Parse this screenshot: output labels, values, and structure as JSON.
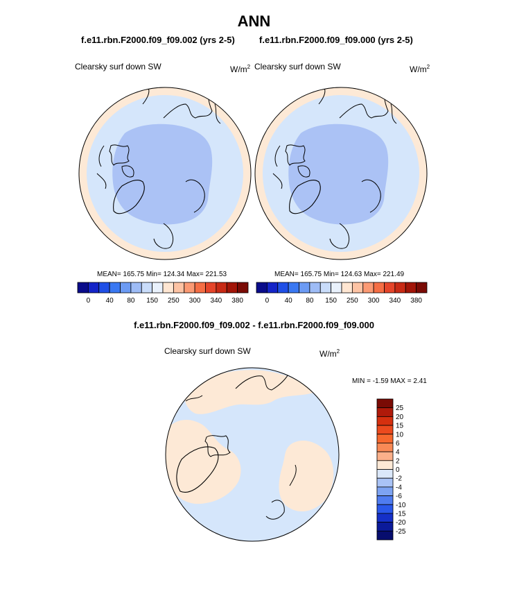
{
  "page": {
    "title": "ANN",
    "diff_title": "f.e11.rbn.F2000.f09_f09.002 - f.e11.rbn.F2000.f09_f09.000"
  },
  "chart_data": [
    {
      "type": "heatmap",
      "title": "f.e11.rbn.F2000.f09_f09.002 (yrs 2-5)",
      "variable": "Clearsky surf down SW",
      "units_base": "W/m",
      "units_exp": "2",
      "stats": "MEAN= 165.75  Min= 124.34  Max= 221.53",
      "colorbar_ticks": [
        "0",
        "40",
        "80",
        "150",
        "250",
        "300",
        "340",
        "380"
      ],
      "colorbar_colors": [
        "#0a0c8a",
        "#1424c8",
        "#1f4fe6",
        "#3a78f2",
        "#6c9bf4",
        "#9ebcf6",
        "#c9dcfa",
        "#e9f1fc",
        "#ffe6d2",
        "#fdc3a4",
        "#fb9a74",
        "#f56e45",
        "#e5452a",
        "#c82a15",
        "#a21508",
        "#7a0b05"
      ],
      "regions": [
        "#d5e6fb",
        "#abc2f5",
        "#fde9d6"
      ],
      "projection": "north-polar-stereographic"
    },
    {
      "type": "heatmap",
      "title": "f.e11.rbn.F2000.f09_f09.000 (yrs 2-5)",
      "variable": "Clearsky surf down SW",
      "units_base": "W/m",
      "units_exp": "2",
      "stats": "MEAN= 165.75  Min= 124.63  Max= 221.49",
      "colorbar_ticks": [
        "0",
        "40",
        "80",
        "150",
        "250",
        "300",
        "340",
        "380"
      ],
      "colorbar_colors": [
        "#0a0c8a",
        "#1424c8",
        "#1f4fe6",
        "#3a78f2",
        "#6c9bf4",
        "#9ebcf6",
        "#c9dcfa",
        "#e9f1fc",
        "#ffe6d2",
        "#fdc3a4",
        "#fb9a74",
        "#f56e45",
        "#e5452a",
        "#c82a15",
        "#a21508",
        "#7a0b05"
      ],
      "regions": [
        "#d5e6fb",
        "#abc2f5",
        "#fde9d6"
      ],
      "projection": "north-polar-stereographic"
    },
    {
      "type": "heatmap",
      "title": "",
      "variable": "Clearsky surf down SW",
      "units_base": "W/m",
      "units_exp": "2",
      "stats": "MIN =  -1.59 MAX =   2.41",
      "colorbar_ticks": [
        "25",
        "20",
        "15",
        "10",
        "6",
        "4",
        "2",
        "0",
        "-2",
        "-4",
        "-6",
        "-10",
        "-15",
        "-20",
        "-25"
      ],
      "colorbar_colors": [
        "#7a0b05",
        "#b01a0a",
        "#d6300f",
        "#ec4a1e",
        "#f7682e",
        "#f98a56",
        "#fbb08a",
        "#fde9d6",
        "#dbe8fa",
        "#a9c3f6",
        "#7da3f2",
        "#4f7cf0",
        "#2a58ea",
        "#1530c8",
        "#0b1a9a",
        "#070d6e"
      ],
      "regions": [
        "#d5e6fb",
        "#fde9d6"
      ],
      "projection": "north-polar-stereographic"
    }
  ]
}
